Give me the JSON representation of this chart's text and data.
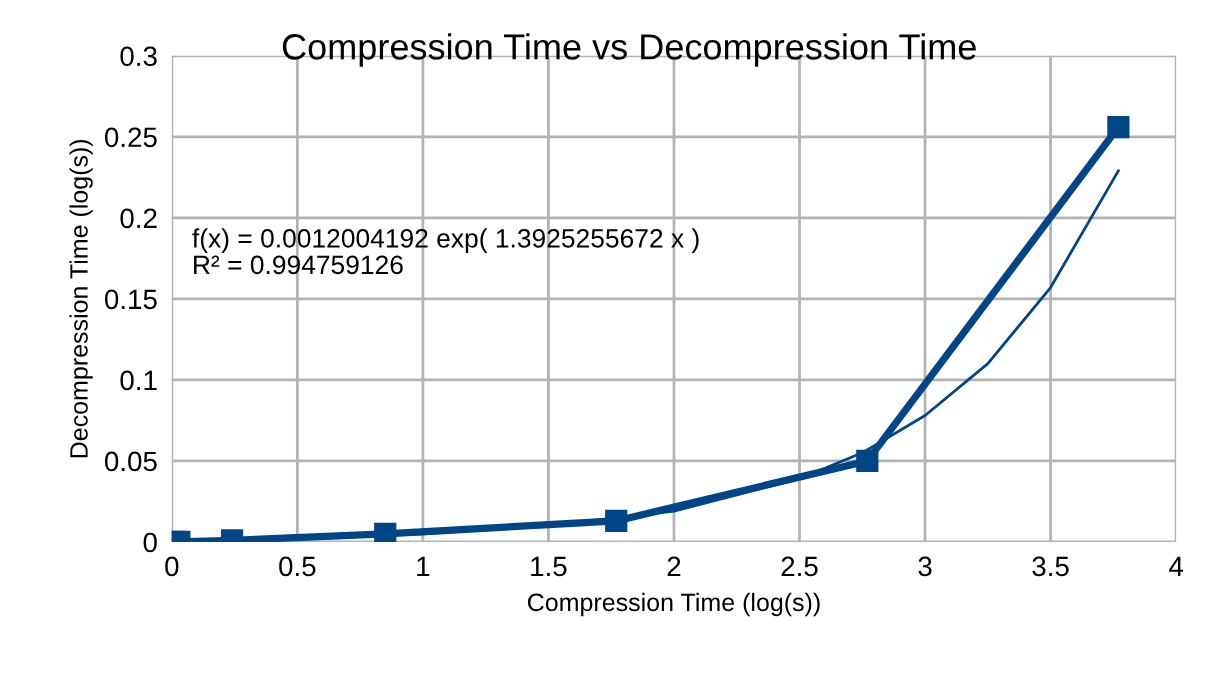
{
  "chart_data": {
    "type": "line",
    "title": "Compression Time vs Decompression Time",
    "xlabel": "Compression Time (log(s))",
    "ylabel": "Decompression Time (log(s))",
    "annotations": [
      "f(x) = 0.0012004192 exp( 1.3925255672 x )\nR² = 0.994759126"
    ],
    "series": [
      {
        "color": "#004586",
        "marker": "square",
        "x": [
          0.01,
          0.03,
          0.24,
          0.85,
          1.77,
          2.77,
          3.77
        ],
        "values": [
          0,
          0,
          0.001,
          0.005,
          0.013,
          0.05,
          0.256
        ]
      },
      {
        "color": "#004586",
        "marker": "none",
        "x": [
          0.01,
          0.5,
          1,
          1.5,
          2,
          2.5,
          2.75,
          3,
          3.25,
          3.5,
          3.77
        ],
        "values": [
          0.001,
          0.002,
          0.005,
          0.01,
          0.019,
          0.039,
          0.055,
          0.078,
          0.11,
          0.157,
          0.229
        ]
      }
    ],
    "xlim": [
      0,
      4
    ],
    "xticks": [
      0,
      0.5,
      1,
      1.5,
      2,
      2.5,
      3,
      3.5,
      4
    ],
    "ylim": [
      0,
      0.3
    ],
    "yticks": [
      0,
      0.05,
      0.1,
      0.15,
      0.2,
      0.25,
      0.3
    ],
    "grid": true,
    "legend": false
  }
}
